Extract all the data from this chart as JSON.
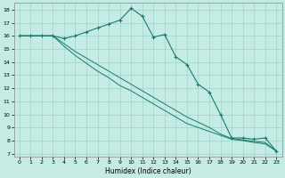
{
  "title": "",
  "xlabel": "Humidex (Indice chaleur)",
  "bg_color": "#c5ece4",
  "grid_color": "#a0d4c8",
  "line_color": "#1a7a6a",
  "xlim": [
    -0.5,
    23.5
  ],
  "ylim": [
    6.8,
    18.5
  ],
  "yticks": [
    7,
    8,
    9,
    10,
    11,
    12,
    13,
    14,
    15,
    16,
    17,
    18
  ],
  "xticks": [
    0,
    1,
    2,
    3,
    4,
    5,
    6,
    7,
    8,
    9,
    10,
    11,
    12,
    13,
    14,
    15,
    16,
    17,
    18,
    19,
    20,
    21,
    22,
    23
  ],
  "line1_x": [
    0,
    1,
    2,
    3,
    4,
    5,
    6,
    7,
    8,
    9,
    10,
    11,
    12,
    13,
    14,
    15,
    16,
    17,
    18,
    19,
    20,
    21,
    22,
    23
  ],
  "line1_y": [
    16.0,
    16.0,
    16.0,
    16.0,
    15.8,
    16.0,
    16.3,
    16.6,
    16.9,
    17.2,
    18.1,
    17.5,
    15.9,
    16.1,
    14.4,
    13.8,
    12.3,
    11.7,
    10.0,
    8.2,
    8.2,
    8.1,
    8.2,
    7.2
  ],
  "line2_x": [
    0,
    1,
    2,
    3,
    4,
    5,
    6,
    7,
    8,
    9,
    10,
    11,
    12,
    13,
    14,
    15,
    16,
    17,
    18,
    19,
    20,
    21,
    22,
    23
  ],
  "line2_y": [
    16.0,
    16.0,
    16.0,
    16.0,
    15.4,
    14.8,
    14.3,
    13.8,
    13.3,
    12.8,
    12.3,
    11.8,
    11.3,
    10.8,
    10.3,
    9.8,
    9.4,
    9.0,
    8.5,
    8.15,
    8.05,
    7.95,
    7.85,
    7.2
  ],
  "line3_x": [
    0,
    1,
    2,
    3,
    4,
    5,
    6,
    7,
    8,
    9,
    10,
    11,
    12,
    13,
    14,
    15,
    16,
    17,
    18,
    19,
    20,
    21,
    22,
    23
  ],
  "line3_y": [
    16.0,
    16.0,
    16.0,
    16.0,
    15.2,
    14.5,
    13.9,
    13.3,
    12.8,
    12.2,
    11.8,
    11.3,
    10.8,
    10.3,
    9.8,
    9.3,
    9.0,
    8.7,
    8.4,
    8.1,
    8.0,
    7.85,
    7.75,
    7.2
  ]
}
